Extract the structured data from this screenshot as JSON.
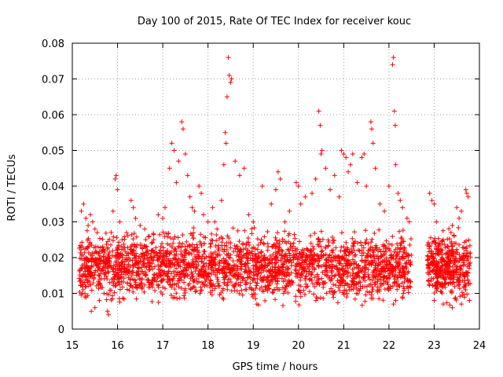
{
  "chart_data": {
    "type": "scatter",
    "title": "Day 100 of 2015, Rate Of TEC Index for receiver kouc",
    "xlabel": "GPS time / hours",
    "ylabel": "ROTI / TECUs",
    "xlim": [
      15,
      24
    ],
    "ylim": [
      0,
      0.08
    ],
    "x_ticks": [
      15,
      16,
      17,
      18,
      19,
      20,
      21,
      22,
      23,
      24
    ],
    "x_tick_labels": [
      "15",
      "16",
      "17",
      "18",
      "19",
      "20",
      "21",
      "22",
      "23",
      "24"
    ],
    "y_ticks": [
      0,
      0.01,
      0.02,
      0.03,
      0.04,
      0.05,
      0.06,
      0.07,
      0.08
    ],
    "y_tick_labels": [
      "0",
      "0.01",
      "0.02",
      "0.03",
      "0.04",
      "0.05",
      "0.06",
      "0.07",
      "0.08"
    ],
    "grid": true,
    "marker": "+",
    "color": "#ff0000",
    "series": [
      {
        "name": "ROTI",
        "points": [
          [
            15.2,
            0.033
          ],
          [
            15.25,
            0.035
          ],
          [
            15.3,
            0.031
          ],
          [
            15.35,
            0.029
          ],
          [
            15.4,
            0.032
          ],
          [
            15.45,
            0.03
          ],
          [
            15.5,
            0.028
          ],
          [
            15.55,
            0.027
          ],
          [
            15.22,
            0.01
          ],
          [
            15.28,
            0.009
          ],
          [
            15.35,
            0.012
          ],
          [
            15.42,
            0.005
          ],
          [
            15.5,
            0.006
          ],
          [
            15.6,
            0.008
          ],
          [
            15.7,
            0.01
          ],
          [
            15.8,
            0.004
          ],
          [
            15.78,
            0.005
          ],
          [
            15.9,
            0.033
          ],
          [
            15.95,
            0.042
          ],
          [
            15.97,
            0.043
          ],
          [
            16.0,
            0.039
          ],
          [
            16.05,
            0.03
          ],
          [
            16.1,
            0.025
          ],
          [
            16.2,
            0.027
          ],
          [
            16.3,
            0.036
          ],
          [
            16.35,
            0.034
          ],
          [
            16.4,
            0.031
          ],
          [
            16.5,
            0.029
          ],
          [
            16.6,
            0.028
          ],
          [
            16.7,
            0.026
          ],
          [
            16.8,
            0.025
          ],
          [
            16.9,
            0.032
          ],
          [
            17.0,
            0.031
          ],
          [
            17.05,
            0.034
          ],
          [
            17.15,
            0.045
          ],
          [
            17.2,
            0.052
          ],
          [
            17.25,
            0.05
          ],
          [
            17.3,
            0.041
          ],
          [
            17.35,
            0.047
          ],
          [
            17.42,
            0.058
          ],
          [
            17.45,
            0.056
          ],
          [
            17.5,
            0.049
          ],
          [
            17.55,
            0.043
          ],
          [
            17.6,
            0.037
          ],
          [
            17.65,
            0.034
          ],
          [
            17.7,
            0.033
          ],
          [
            17.8,
            0.04
          ],
          [
            17.85,
            0.038
          ],
          [
            17.9,
            0.032
          ],
          [
            18.0,
            0.03
          ],
          [
            18.1,
            0.034
          ],
          [
            18.15,
            0.03
          ],
          [
            18.2,
            0.028
          ],
          [
            18.3,
            0.036
          ],
          [
            18.35,
            0.046
          ],
          [
            18.38,
            0.055
          ],
          [
            18.4,
            0.052
          ],
          [
            18.42,
            0.065
          ],
          [
            18.45,
            0.076
          ],
          [
            18.47,
            0.071
          ],
          [
            18.5,
            0.069
          ],
          [
            18.52,
            0.07
          ],
          [
            18.6,
            0.047
          ],
          [
            18.7,
            0.043
          ],
          [
            18.8,
            0.045
          ],
          [
            18.9,
            0.032
          ],
          [
            19.0,
            0.03
          ],
          [
            19.2,
            0.04
          ],
          [
            19.4,
            0.035
          ],
          [
            19.5,
            0.039
          ],
          [
            19.55,
            0.044
          ],
          [
            19.6,
            0.042
          ],
          [
            19.7,
            0.03
          ],
          [
            19.8,
            0.033
          ],
          [
            19.95,
            0.041
          ],
          [
            20.0,
            0.04
          ],
          [
            20.05,
            0.035
          ],
          [
            20.15,
            0.037
          ],
          [
            20.3,
            0.038
          ],
          [
            20.38,
            0.042
          ],
          [
            20.45,
            0.061
          ],
          [
            20.48,
            0.057
          ],
          [
            20.5,
            0.049
          ],
          [
            20.52,
            0.05
          ],
          [
            20.6,
            0.045
          ],
          [
            20.7,
            0.039
          ],
          [
            20.8,
            0.043
          ],
          [
            20.9,
            0.037
          ],
          [
            20.95,
            0.05
          ],
          [
            21.0,
            0.049
          ],
          [
            21.05,
            0.048
          ],
          [
            21.1,
            0.044
          ],
          [
            21.15,
            0.046
          ],
          [
            21.2,
            0.049
          ],
          [
            21.3,
            0.041
          ],
          [
            21.4,
            0.048
          ],
          [
            21.45,
            0.049
          ],
          [
            21.5,
            0.04
          ],
          [
            21.6,
            0.058
          ],
          [
            21.62,
            0.056
          ],
          [
            21.65,
            0.052
          ],
          [
            21.7,
            0.045
          ],
          [
            21.8,
            0.035
          ],
          [
            21.9,
            0.033
          ],
          [
            22.0,
            0.04
          ],
          [
            22.08,
            0.074
          ],
          [
            22.1,
            0.076
          ],
          [
            22.12,
            0.061
          ],
          [
            22.14,
            0.057
          ],
          [
            22.15,
            0.046
          ],
          [
            22.2,
            0.038
          ],
          [
            22.25,
            0.036
          ],
          [
            22.3,
            0.034
          ],
          [
            22.4,
            0.031
          ],
          [
            22.45,
            0.03
          ],
          [
            22.1,
            0.007
          ],
          [
            22.15,
            0.008
          ],
          [
            22.3,
            0.009
          ],
          [
            22.45,
            0.012
          ],
          [
            22.9,
            0.038
          ],
          [
            22.95,
            0.036
          ],
          [
            23.0,
            0.035
          ],
          [
            23.05,
            0.03
          ],
          [
            23.1,
            0.022
          ],
          [
            23.2,
            0.025
          ],
          [
            23.3,
            0.02
          ],
          [
            23.4,
            0.029
          ],
          [
            23.5,
            0.034
          ],
          [
            23.55,
            0.031
          ],
          [
            23.6,
            0.033
          ],
          [
            23.7,
            0.039
          ],
          [
            23.72,
            0.038
          ],
          [
            23.75,
            0.037
          ],
          [
            23.78,
            0.008
          ],
          [
            23.6,
            0.007
          ],
          [
            23.4,
            0.006
          ],
          [
            23.2,
            0.007
          ],
          [
            23.0,
            0.008
          ]
        ]
      }
    ],
    "dense_band": {
      "x_range": [
        15.15,
        22.5
      ],
      "x_range2": [
        22.85,
        23.8
      ],
      "y_min": 0.005,
      "y_max": 0.03,
      "note": "dense cloud of ROTI samples"
    }
  }
}
